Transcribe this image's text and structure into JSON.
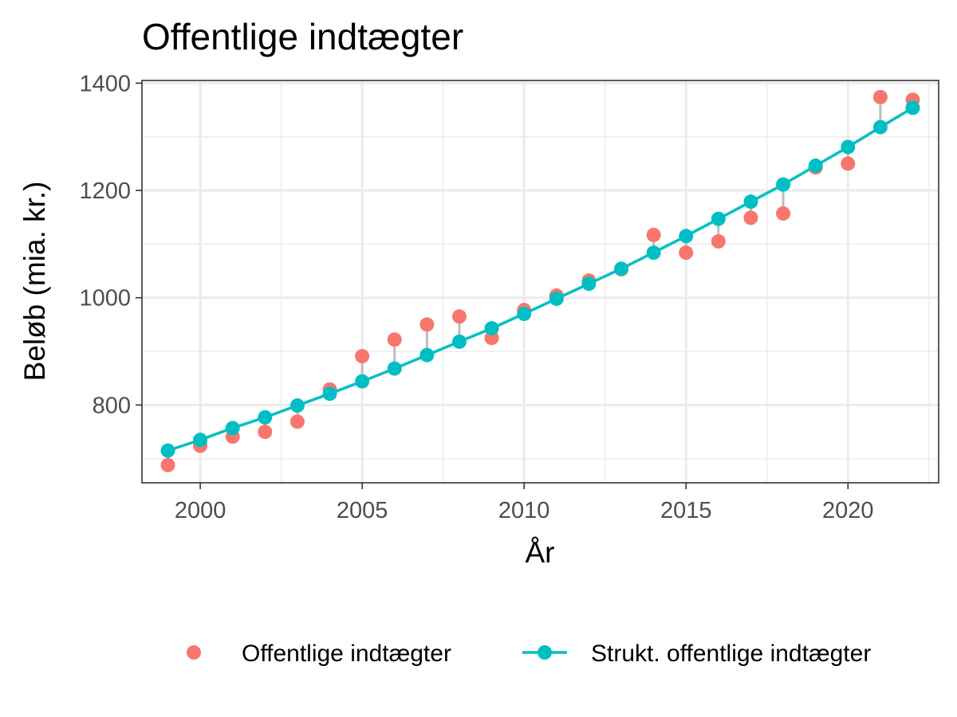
{
  "chart_data": {
    "type": "line",
    "title": "Offentlige indtægter",
    "xlabel": "År",
    "ylabel": "Beløb (mia. kr.)",
    "xlim": [
      1998.2,
      2022.8
    ],
    "ylim": [
      655,
      1405
    ],
    "x_ticks": [
      2000,
      2005,
      2010,
      2015,
      2020
    ],
    "y_ticks": [
      800,
      1000,
      1200,
      1400
    ],
    "grid": true,
    "legend_position": "bottom",
    "x": [
      1999,
      2000,
      2001,
      2002,
      2003,
      2004,
      2005,
      2006,
      2007,
      2008,
      2009,
      2010,
      2011,
      2012,
      2013,
      2014,
      2015,
      2016,
      2017,
      2018,
      2019,
      2020,
      2021,
      2022
    ],
    "series": [
      {
        "name": "Offentlige indtægter",
        "type": "scatter",
        "color": "#F8766D",
        "values": [
          688,
          724,
          741,
          750,
          769,
          829,
          891,
          922,
          950,
          965,
          925,
          977,
          1004,
          1032,
          1053,
          1117,
          1084,
          1105,
          1149,
          1157,
          1243,
          1250,
          1374,
          1369
        ]
      },
      {
        "name": "Strukt. offentlige indtægter",
        "type": "line",
        "color": "#00BFC4",
        "values": [
          715,
          735,
          757,
          777,
          799,
          821,
          844,
          868,
          893,
          918,
          943,
          970,
          998,
          1026,
          1054,
          1084,
          1115,
          1147,
          1179,
          1211,
          1246,
          1281,
          1318,
          1354
        ]
      }
    ],
    "gap_color": "#bdbdbd"
  }
}
